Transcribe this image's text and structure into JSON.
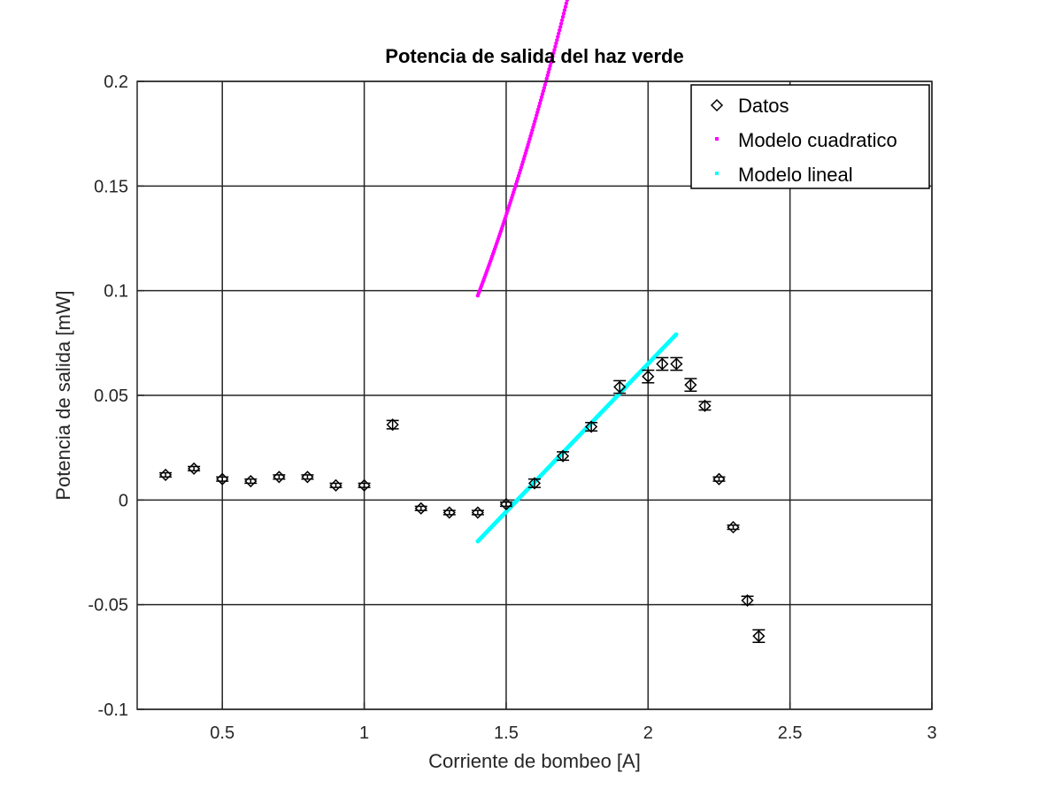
{
  "chart_data": {
    "type": "scatter",
    "title": "Potencia de salida del haz verde",
    "xlabel": "Corriente de bombeo [A]",
    "ylabel": "Potencia de salida [mW]",
    "xlim": [
      0.2,
      3.0
    ],
    "ylim": [
      -0.1,
      0.2
    ],
    "xticks": [
      0.5,
      1,
      1.5,
      2,
      2.5,
      3
    ],
    "xtick_labels": [
      "0.5",
      "1",
      "1.5",
      "2",
      "2.5",
      "3"
    ],
    "yticks": [
      -0.1,
      -0.05,
      0,
      0.05,
      0.1,
      0.15,
      0.2
    ],
    "ytick_labels": [
      "-0.1",
      "-0.05",
      "0",
      "0.05",
      "0.1",
      "0.15",
      "0.2"
    ],
    "grid": true,
    "legend_position": "top-right",
    "series": [
      {
        "name": "Datos",
        "kind": "markers-errorbars",
        "marker": "diamond",
        "color": "#000000",
        "x": [
          0.3,
          0.4,
          0.5,
          0.6,
          0.7,
          0.8,
          0.9,
          1.0,
          1.1,
          1.2,
          1.3,
          1.4,
          1.5,
          1.6,
          1.7,
          1.8,
          1.9,
          2.0,
          2.05,
          2.1,
          2.15,
          2.2,
          2.25,
          2.3,
          2.35,
          2.39
        ],
        "y": [
          0.012,
          0.015,
          0.01,
          0.009,
          0.011,
          0.011,
          0.007,
          0.007,
          0.036,
          -0.004,
          -0.006,
          -0.006,
          -0.002,
          0.008,
          0.021,
          0.035,
          0.054,
          0.059,
          0.065,
          0.065,
          0.055,
          0.045,
          0.01,
          -0.013,
          -0.048,
          -0.065
        ],
        "err": [
          0.001,
          0.001,
          0.001,
          0.001,
          0.001,
          0.001,
          0.001,
          0.001,
          0.002,
          0.001,
          0.001,
          0.001,
          0.001,
          0.002,
          0.002,
          0.002,
          0.003,
          0.003,
          0.003,
          0.003,
          0.003,
          0.002,
          0.001,
          0.001,
          0.002,
          0.003
        ]
      },
      {
        "name": "Modelo cuadratico",
        "kind": "dotted-curve",
        "color": "#ff00ff",
        "x_range": [
          1.4,
          2.1
        ],
        "coefficients_quadratic": [
          0.1888,
          -0.4841,
          0.2993
        ]
      },
      {
        "name": "Modelo lineal",
        "kind": "dotted-line",
        "color": "#00ffff",
        "x_range": [
          1.4,
          2.1
        ],
        "coefficients_linear": [
          0.1414,
          -0.2177
        ]
      }
    ]
  }
}
